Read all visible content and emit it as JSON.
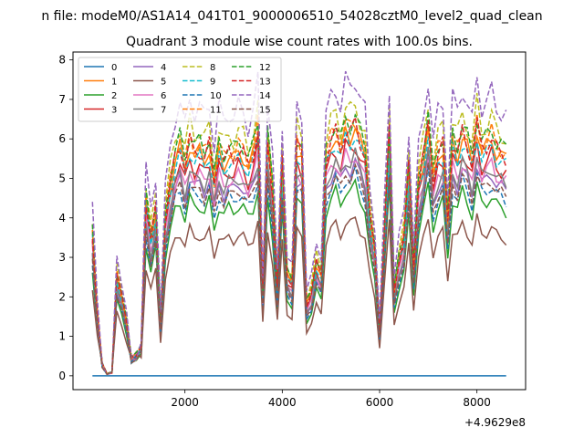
{
  "chart_data": {
    "type": "line",
    "suptitle": "n file: modeM0/AS1A14_041T01_9000006510_54028cztM0_level2_quad_clean",
    "title": "Quadrant 3 module wise count rates with 100.0s bins.",
    "xlabel": "",
    "ylabel": "",
    "x_offset_label": "+4.9629e8",
    "xlim": [
      -300,
      9000
    ],
    "ylim": [
      -0.35,
      8.2
    ],
    "x_ticks": [
      2000,
      4000,
      6000,
      8000
    ],
    "x_tick_labels": [
      "2000",
      "4000",
      "6000",
      "8000"
    ],
    "y_ticks": [
      0,
      1,
      2,
      3,
      4,
      5,
      6,
      7,
      8
    ],
    "y_tick_labels": [
      "0",
      "1",
      "2",
      "3",
      "4",
      "5",
      "6",
      "7",
      "8"
    ],
    "grid": false,
    "legend_placement": "top-left",
    "legend_columns": 4,
    "x": [
      100,
      200,
      300,
      400,
      500,
      600,
      700,
      800,
      900,
      1000,
      1100,
      1200,
      1300,
      1400,
      1500,
      1600,
      1700,
      1800,
      1900,
      2000,
      2100,
      2200,
      2300,
      2400,
      2500,
      2600,
      2700,
      2800,
      2900,
      3000,
      3100,
      3200,
      3300,
      3400,
      3500,
      3600,
      3700,
      3800,
      3900,
      4000,
      4100,
      4200,
      4300,
      4400,
      4500,
      4600,
      4700,
      4800,
      4900,
      5000,
      5100,
      5200,
      5300,
      5400,
      5500,
      5600,
      5700,
      5800,
      5900,
      6000,
      6100,
      6200,
      6300,
      6400,
      6500,
      6600,
      6700,
      6800,
      6900,
      7000,
      7100,
      7200,
      7300,
      7400,
      7500,
      7600,
      7700,
      7800,
      7900,
      8000,
      8100,
      8200,
      8300,
      8400,
      8500,
      8600
    ],
    "base_profile": [
      3.4,
      1.5,
      0.3,
      0.05,
      0.1,
      2.4,
      1.9,
      1.3,
      0.45,
      0.55,
      0.7,
      4.2,
      3.3,
      4.0,
      1.3,
      3.8,
      4.6,
      5.2,
      5.5,
      5.0,
      5.6,
      5.3,
      5.4,
      5.2,
      5.5,
      4.6,
      5.4,
      5.1,
      5.3,
      5.2,
      5.4,
      5.3,
      5.0,
      5.3,
      5.9,
      2.0,
      5.6,
      4.4,
      2.1,
      5.1,
      2.4,
      2.2,
      5.5,
      5.3,
      1.7,
      2.0,
      2.7,
      2.4,
      5.2,
      5.6,
      5.8,
      5.4,
      5.9,
      5.8,
      6.0,
      5.6,
      5.3,
      3.8,
      3.0,
      1.1,
      3.5,
      5.8,
      2.0,
      2.8,
      3.3,
      5.0,
      2.6,
      4.6,
      5.2,
      6.0,
      4.7,
      5.3,
      5.5,
      3.7,
      5.6,
      5.3,
      5.8,
      5.5,
      5.1,
      6.0,
      5.4,
      5.5,
      5.7,
      5.4,
      5.3,
      5.2
    ],
    "series": [
      {
        "name": "0",
        "color": "#1f77b4",
        "dash": "solid",
        "constant": 0
      },
      {
        "name": "1",
        "color": "#ff7f0e",
        "dash": "solid",
        "scale": 1.05
      },
      {
        "name": "2",
        "color": "#2ca02c",
        "dash": "solid",
        "scale": 0.8
      },
      {
        "name": "3",
        "color": "#d62728",
        "dash": "solid",
        "scale": 0.98
      },
      {
        "name": "4",
        "color": "#9467bd",
        "dash": "solid",
        "scale": 0.9
      },
      {
        "name": "5",
        "color": "#8c564b",
        "dash": "solid",
        "scale": 0.66
      },
      {
        "name": "6",
        "color": "#e377c2",
        "dash": "solid",
        "scale": 0.94
      },
      {
        "name": "7",
        "color": "#7f7f7f",
        "dash": "solid",
        "scale": 0.93
      },
      {
        "name": "8",
        "color": "#bcbd22",
        "dash": "dashed",
        "scale": 1.15
      },
      {
        "name": "9",
        "color": "#17becf",
        "dash": "dashed",
        "scale": 1.02
      },
      {
        "name": "10",
        "color": "#1f77b4",
        "dash": "dashed",
        "scale": 0.85
      },
      {
        "name": "11",
        "color": "#ff7f0e",
        "dash": "dashed",
        "scale": 1.08
      },
      {
        "name": "12",
        "color": "#2ca02c",
        "dash": "dashed",
        "scale": 1.1
      },
      {
        "name": "13",
        "color": "#d62728",
        "dash": "dashed",
        "scale": 1.06
      },
      {
        "name": "14",
        "color": "#9467bd",
        "dash": "dashed",
        "scale": 1.26
      },
      {
        "name": "15",
        "color": "#8c564b",
        "dash": "dashed",
        "scale": 0.87
      }
    ]
  }
}
